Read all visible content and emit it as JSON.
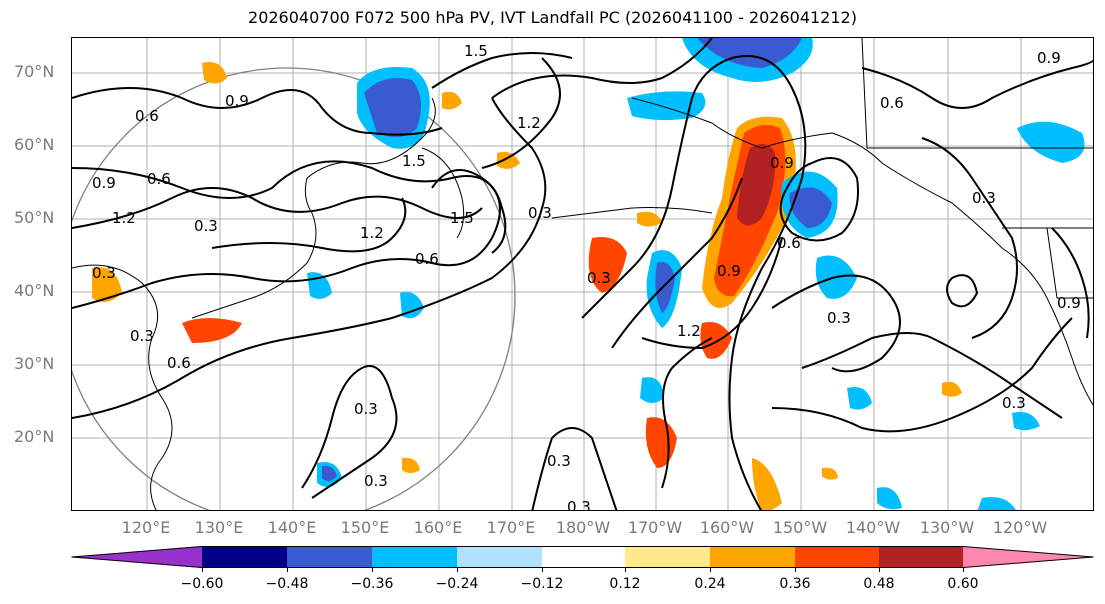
{
  "title": "2026040700 F072 500 hPa PV, IVT Landfall PC (2026041100 - 2026041212)",
  "lat_labels": [
    "70°N",
    "60°N",
    "50°N",
    "40°N",
    "30°N",
    "20°N"
  ],
  "lon_labels": [
    "120°E",
    "130°E",
    "140°E",
    "150°E",
    "160°E",
    "170°E",
    "180°W",
    "170°W",
    "160°W",
    "150°W",
    "140°W",
    "130°W",
    "120°W"
  ],
  "contour_labels": [
    "1.5",
    "0.9",
    "0.6",
    "0.9",
    "0.6",
    "1.2",
    "1.2",
    "0.3",
    "1.5",
    "1.5",
    "0.3",
    "0.3",
    "0.3",
    "1.2",
    "0.6",
    "0.3",
    "0.9",
    "1.2",
    "0.9",
    "0.6",
    "0.3",
    "0.3",
    "0.3",
    "0.3",
    "0.3",
    "0.3",
    "0.6",
    "0.9",
    "0.9",
    "0.3",
    "0.6"
  ],
  "colorbar": {
    "ticks": [
      "−0.60",
      "−0.48",
      "−0.36",
      "−0.24",
      "−0.12",
      "0.12",
      "0.24",
      "0.36",
      "0.48",
      "0.60"
    ],
    "colors": [
      "#9932cc",
      "#00008b",
      "#3a5bcf",
      "#00bfff",
      "#b0e2ff",
      "#ffffff",
      "#ffe98a",
      "#ffa500",
      "#ff4500",
      "#b22222",
      "#ff86b0"
    ]
  }
}
